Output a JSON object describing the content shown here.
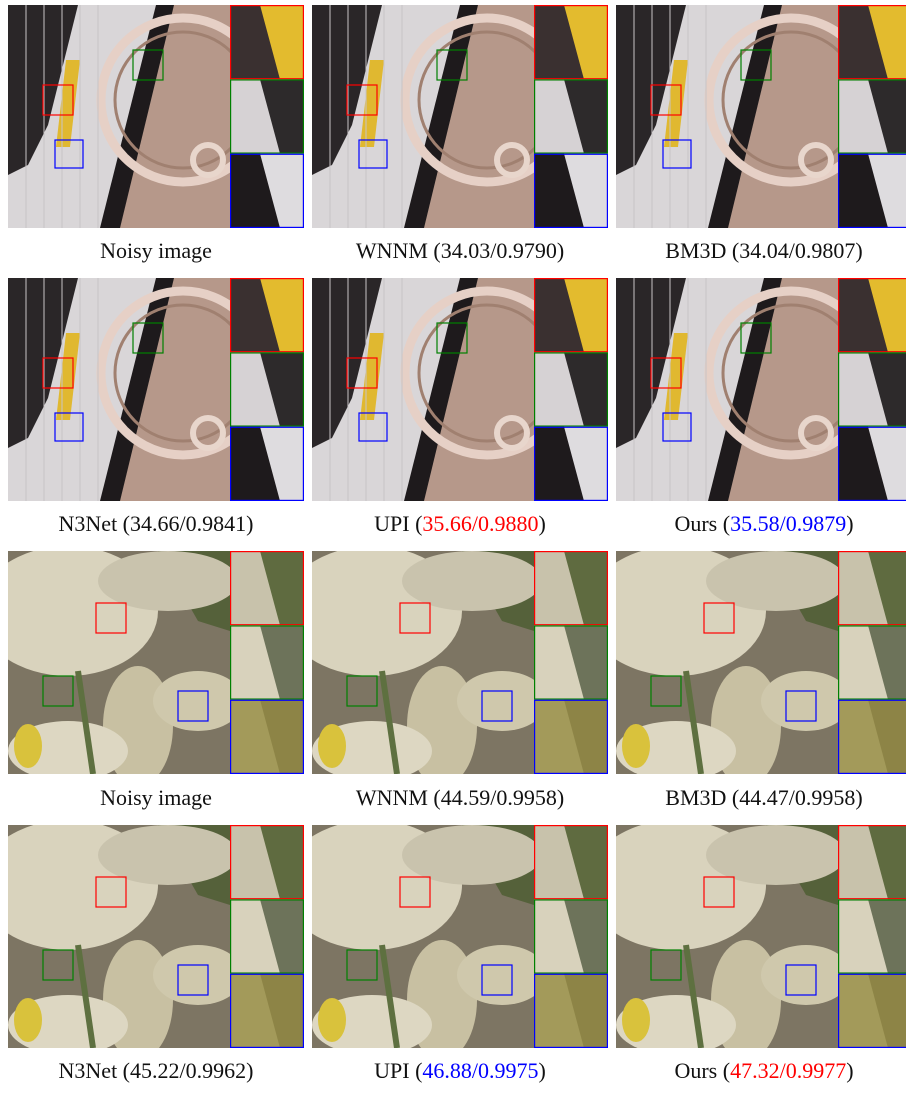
{
  "figure": {
    "captions": [
      [
        {
          "text": "Noisy image"
        }
      ],
      [
        {
          "text": "WNNM (34.03/0.9790)"
        }
      ],
      [
        {
          "text": "BM3D (34.04/0.9807)"
        }
      ],
      [
        {
          "text": "N3Net (34.66/0.9841)"
        }
      ],
      [
        {
          "text": "UPI ("
        },
        {
          "text": "35.66/0.9880",
          "color": "#ff0000"
        },
        {
          "text": ")"
        }
      ],
      [
        {
          "text": "Ours ("
        },
        {
          "text": "35.58/0.9879",
          "color": "#0000ff"
        },
        {
          "text": ")"
        }
      ],
      [
        {
          "text": "Noisy image"
        }
      ],
      [
        {
          "text": "WNNM (44.59/0.9958)"
        }
      ],
      [
        {
          "text": "BM3D (44.47/0.9958)"
        }
      ],
      [
        {
          "text": "N3Net (45.22/0.9962)"
        }
      ],
      [
        {
          "text": "UPI ("
        },
        {
          "text": "46.88/0.9975",
          "color": "#0000ff"
        },
        {
          "text": ")"
        }
      ],
      [
        {
          "text": "Ours ("
        },
        {
          "text": "47.32/0.9977",
          "color": "#ff0000"
        },
        {
          "text": ")"
        }
      ]
    ]
  }
}
